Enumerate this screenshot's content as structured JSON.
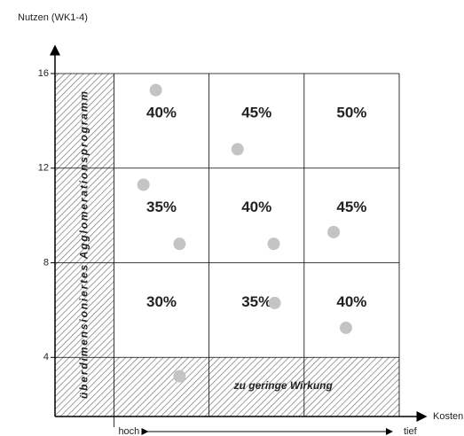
{
  "chart_data": {
    "type": "scatter",
    "y_label": "Nutzen (WK1-4)",
    "x_label": "Kosten",
    "x_low_label": "hoch",
    "x_high_label": "tief",
    "ylim": [
      1.5,
      16
    ],
    "yticks": [
      4,
      8,
      12,
      16
    ],
    "xlim": [
      -0.62,
      3.28
    ],
    "xgrid": [
      0,
      1,
      2,
      3
    ],
    "cell_labels": [
      [
        "40%",
        "45%",
        "50%"
      ],
      [
        "35%",
        "40%",
        "45%"
      ],
      [
        "30%",
        "35%",
        "40%"
      ]
    ],
    "hatch_left_label": "überdimensioniertes Agglomerationsprogramm",
    "hatch_bottom_label": "zu geringe Wirkung",
    "color": "#c4c4c4",
    "x": [
      0.44,
      1.3,
      0.31,
      0.69,
      1.68,
      2.31,
      1.69,
      2.44,
      0.69
    ],
    "values": [
      15.3,
      12.8,
      11.3,
      8.8,
      8.8,
      9.3,
      6.3,
      5.25,
      3.2
    ]
  }
}
